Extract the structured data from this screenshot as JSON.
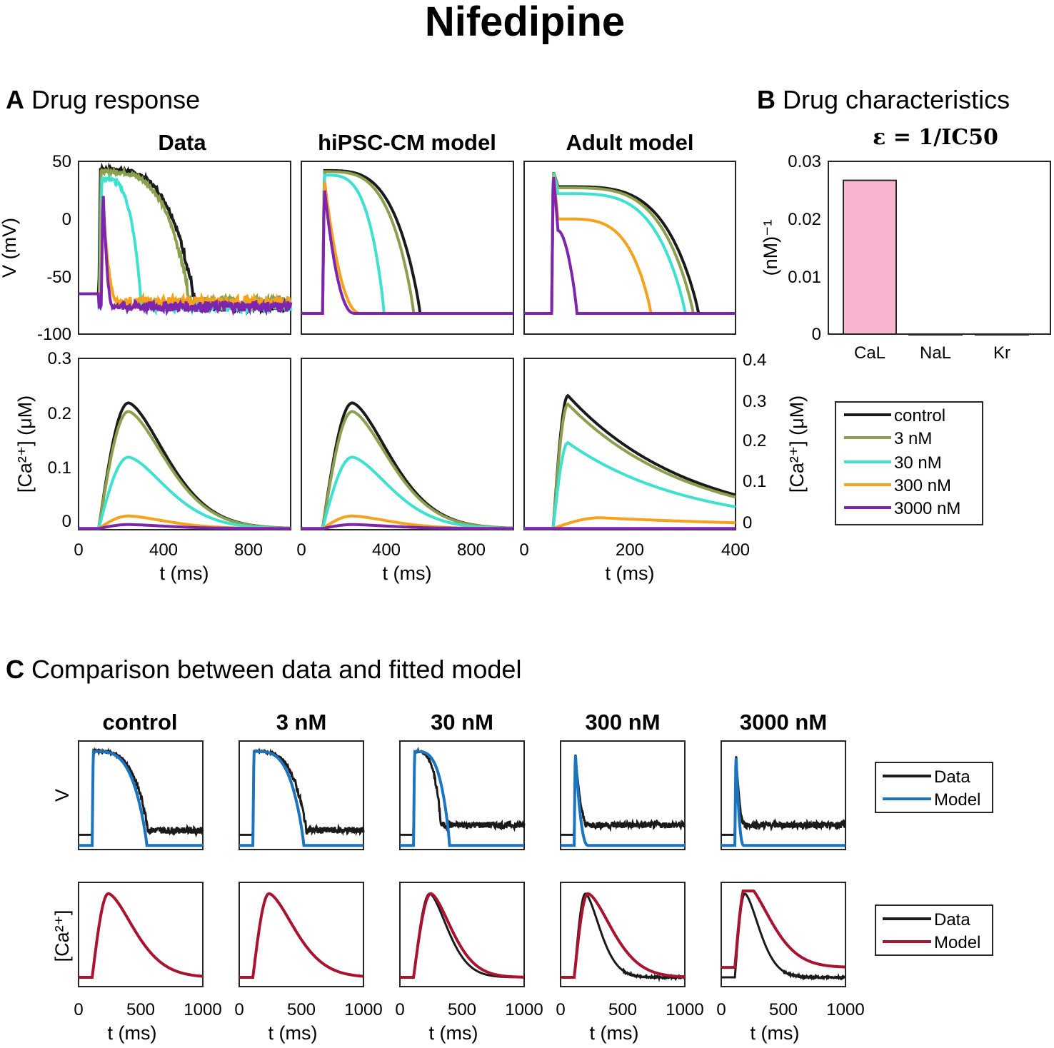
{
  "figure_title": "Nifedipine",
  "panels": {
    "A": {
      "letter": "A",
      "title": "Drug response"
    },
    "B": {
      "letter": "B",
      "title": "Drug characteristics",
      "subtitle": "ε = 1/IC50"
    },
    "C": {
      "letter": "C",
      "title": "Comparison between data and fitted model"
    }
  },
  "colors": {
    "control": "#1a1a1a",
    "3 nM": "#8aa04e",
    "30 nM": "#3ee0d0",
    "300 nM": "#f6a21d",
    "3000 nM": "#7d25ac",
    "pink_bar": "#f9b5cf",
    "model_V": "#1c73c0",
    "model_Ca": "#a8132f",
    "data": "#1a1a1a"
  },
  "legend_A": {
    "items": [
      "control",
      "3 nM",
      "30 nM",
      "300 nM",
      "3000 nM"
    ]
  },
  "legend_C_V": {
    "items": [
      "Data",
      "Model"
    ]
  },
  "legend_C_Ca": {
    "items": [
      "Data",
      "Model"
    ]
  },
  "chart_data": [
    {
      "id": "A-V",
      "type": "line",
      "column_titles": [
        "Data",
        "hiPSC-CM model",
        "Adult model"
      ],
      "ylabel": "V (mV)",
      "ylim": [
        -100,
        50
      ],
      "yticks": [
        "50",
        "0",
        "-50",
        "-100"
      ],
      "series_names": [
        "control",
        "3 nM",
        "30 nM",
        "300 nM",
        "3000 nM"
      ],
      "apd90_ms": {
        "Data": [
          550,
          520,
          290,
          175,
          150
        ],
        "hiPSC-CM model": [
          560,
          530,
          390,
          280,
          250
        ],
        "Adult model": [
          330,
          320,
          305,
          240,
          100
        ]
      },
      "peak_mV": {
        "Data": [
          43,
          41,
          35,
          22,
          28
        ],
        "hiPSC-CM model": [
          42,
          41,
          38,
          35,
          28
        ],
        "Adult model": [
          28,
          27,
          22,
          0,
          -10
        ]
      },
      "resting_mV": -82
    },
    {
      "id": "A-Ca",
      "type": "line",
      "ylabel": "[Ca²⁺] (μM)",
      "xlabel": "t (ms)",
      "xlim_hipsc": [
        0,
        1000
      ],
      "xticks_hipsc": [
        "0",
        "400",
        "800"
      ],
      "xlim_adult": [
        0,
        400
      ],
      "xticks_adult": [
        "0",
        "200",
        "400"
      ],
      "ylim_left": [
        0,
        0.3
      ],
      "yticks_left": [
        "0.3",
        "0.2",
        "0.1",
        "0"
      ],
      "ylim_right": [
        0,
        0.4
      ],
      "yticks_right": [
        "0.4",
        "0.3",
        "0.2",
        "0.1",
        "0"
      ],
      "peak_uM": {
        "Data": [
          0.22,
          0.205,
          0.125,
          0.022,
          0.007
        ],
        "hiPSC-CM model": [
          0.22,
          0.205,
          0.125,
          0.022,
          0.007
        ],
        "Adult model": [
          0.31,
          0.29,
          0.2,
          0.025,
          0.0
        ]
      }
    },
    {
      "id": "B",
      "type": "bar",
      "categories": [
        "CaL",
        "NaL",
        "Kr"
      ],
      "values": [
        0.0267,
        0,
        0
      ],
      "ylabel": "(nM)⁻¹",
      "ylim": [
        0,
        0.03
      ],
      "yticks": [
        "0.03",
        "0.02",
        "0.01",
        "0"
      ]
    },
    {
      "id": "C",
      "type": "line",
      "column_titles": [
        "control",
        "3 nM",
        "30 nM",
        "300 nM",
        "3000 nM"
      ],
      "row_labels": [
        "V",
        "[Ca²⁺]"
      ],
      "xlabel": "t (ms)",
      "xlim": [
        0,
        1000
      ],
      "xticks": [
        "0",
        "500",
        "1000"
      ],
      "V_apd_ms": {
        "data": [
          560,
          540,
          330,
          220,
          190
        ],
        "model": [
          550,
          520,
          400,
          220,
          180
        ]
      },
      "Ca_peak_ms": {
        "data": [
          240,
          240,
          240,
          200,
          190
        ],
        "model": [
          240,
          240,
          250,
          220,
          200
        ]
      }
    }
  ]
}
